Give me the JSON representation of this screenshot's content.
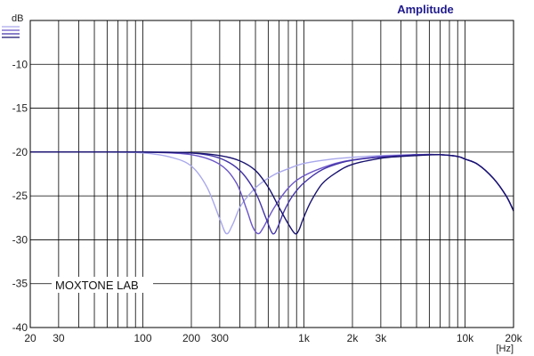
{
  "chart_data": {
    "type": "line",
    "title": "Amplitude",
    "ylabel": "dB",
    "xlabel": "[Hz]",
    "x_scale": "log",
    "xlim": [
      20,
      20000
    ],
    "ylim": [
      -40,
      -5
    ],
    "grid": true,
    "watermark": "MOXTONE LAB",
    "colors": {
      "title": "#1f1a8c",
      "grid": "#000000",
      "axis": "#000000"
    },
    "x_ticks": [
      {
        "value": 20,
        "label": "20"
      },
      {
        "value": 30,
        "label": "30"
      },
      {
        "value": 100,
        "label": "100"
      },
      {
        "value": 200,
        "label": "200"
      },
      {
        "value": 300,
        "label": "300"
      },
      {
        "value": 1000,
        "label": "1k"
      },
      {
        "value": 2000,
        "label": "2k"
      },
      {
        "value": 3000,
        "label": "3k"
      },
      {
        "value": 10000,
        "label": "10k"
      },
      {
        "value": 20000,
        "label": "20k"
      }
    ],
    "y_ticks": [
      {
        "value": -10,
        "label": "-10"
      },
      {
        "value": -15,
        "label": "-15"
      },
      {
        "value": -20,
        "label": "-20"
      },
      {
        "value": -25,
        "label": "-25"
      },
      {
        "value": -30,
        "label": "-30"
      },
      {
        "value": -35,
        "label": "-35"
      },
      {
        "value": -40,
        "label": "-40"
      }
    ],
    "series": [
      {
        "color": "#a9a8ec",
        "x": [
          20,
          30,
          60,
          100,
          150,
          200,
          250,
          300,
          330,
          360,
          400,
          450,
          520,
          650,
          800,
          1000,
          1500,
          2000,
          3000,
          5000,
          7000,
          9000,
          10000,
          12000,
          15000,
          18000,
          20000
        ],
        "y": [
          -20,
          -20,
          -20,
          -20.1,
          -20.6,
          -21.6,
          -24,
          -27.6,
          -29.3,
          -28.3,
          -26.3,
          -25,
          -23.8,
          -22.6,
          -21.9,
          -21.3,
          -20.8,
          -20.6,
          -20.4,
          -20.3,
          -20.3,
          -20.5,
          -20.8,
          -21.4,
          -23,
          -25,
          -26.7
        ]
      },
      {
        "color": "#6b55c8",
        "x": [
          20,
          50,
          100,
          200,
          300,
          380,
          440,
          480,
          520,
          560,
          650,
          800,
          1000,
          1500,
          2000,
          3000,
          5000,
          7000,
          9000,
          10000,
          12000,
          15000,
          18000,
          20000
        ],
        "y": [
          -20,
          -20,
          -20,
          -20.3,
          -21.4,
          -23.5,
          -26.5,
          -28.5,
          -29.3,
          -28.6,
          -26.4,
          -24.1,
          -22.7,
          -21.4,
          -20.9,
          -20.5,
          -20.3,
          -20.3,
          -20.5,
          -20.8,
          -21.4,
          -23,
          -25,
          -26.7
        ]
      },
      {
        "color": "#4233a6",
        "x": [
          20,
          50,
          100,
          200,
          300,
          400,
          500,
          580,
          640,
          690,
          750,
          850,
          1000,
          1300,
          1800,
          2500,
          3500,
          5000,
          7000,
          9000,
          10000,
          12000,
          15000,
          18000,
          20000
        ],
        "y": [
          -20,
          -20,
          -20,
          -20.1,
          -20.7,
          -22.1,
          -24.6,
          -27.5,
          -29.3,
          -28.5,
          -26.8,
          -25,
          -23.5,
          -22,
          -21.1,
          -20.7,
          -20.5,
          -20.3,
          -20.3,
          -20.5,
          -20.8,
          -21.4,
          -23,
          -25,
          -26.7
        ]
      },
      {
        "color": "#18126e",
        "x": [
          20,
          50,
          100,
          200,
          300,
          400,
          500,
          600,
          700,
          800,
          880,
          930,
          990,
          1100,
          1300,
          1600,
          2000,
          3000,
          4000,
          5000,
          7000,
          9000,
          10000,
          12000,
          15000,
          18000,
          20000
        ],
        "y": [
          -20,
          -20,
          -20,
          -20.1,
          -20.4,
          -21,
          -22.1,
          -24,
          -26.3,
          -28.2,
          -29.3,
          -28.9,
          -27.6,
          -25.7,
          -23.6,
          -22.3,
          -21.4,
          -20.7,
          -20.5,
          -20.4,
          -20.3,
          -20.5,
          -20.8,
          -21.4,
          -23,
          -25,
          -26.7
        ]
      }
    ]
  }
}
